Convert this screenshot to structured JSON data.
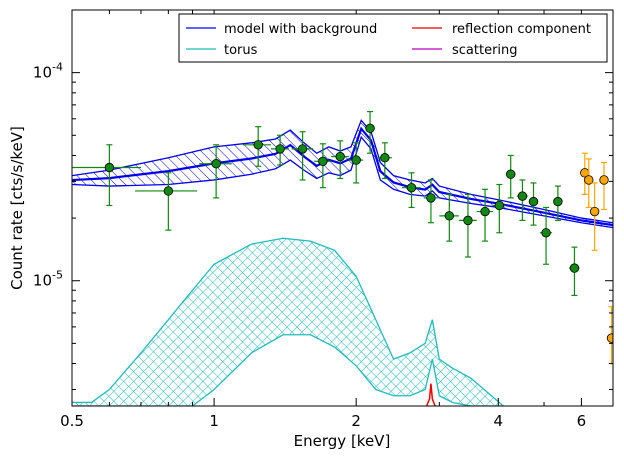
{
  "chart_data": {
    "type": "scatter",
    "xlabel": "Energy [keV]",
    "ylabel": "Count rate [cts/s/keV]",
    "x_scale": "log",
    "y_scale": "log",
    "xlim": [
      0.5,
      7.0
    ],
    "ylim": [
      2.5e-06,
      0.0002
    ],
    "x_tick_labels": [
      {
        "value": 0.5,
        "label": "0.5"
      },
      {
        "value": 1,
        "label": "1"
      },
      {
        "value": 2,
        "label": "2"
      },
      {
        "value": 4,
        "label": "4"
      },
      {
        "value": 6,
        "label": "6"
      }
    ],
    "y_tick_labels": [
      {
        "value": 1e-05,
        "label": "10",
        "exponent": "-5"
      },
      {
        "value": 0.0001,
        "label": "10",
        "exponent": "-4"
      }
    ],
    "legend": {
      "placement": "top-right",
      "columns": 2,
      "entries": [
        {
          "label": "model with background",
          "color": "#0000ee"
        },
        {
          "label": "reflection component",
          "color": "#ee0000"
        },
        {
          "label": "torus",
          "color": "#22bbbb"
        },
        {
          "label": "scattering",
          "color": "#bb00bb"
        }
      ]
    },
    "colors": {
      "model": "#0000ee",
      "torus": "#22bbbb",
      "reflection": "#ee0000",
      "scattering": "#bb00bb",
      "data_green": "#118811",
      "data_orange": "#ffa500"
    },
    "model_band": {
      "x": [
        0.5,
        0.6,
        0.8,
        1.0,
        1.2,
        1.35,
        1.45,
        1.55,
        1.65,
        1.75,
        1.85,
        1.95,
        2.05,
        2.15,
        2.25,
        2.4,
        2.6,
        2.8,
        2.9,
        3.0,
        3.5,
        4.0,
        5.0,
        6.0,
        7.0
      ],
      "upper": [
        3.2e-05,
        3.4e-05,
        3.9e-05,
        4.4e-05,
        4.6e-05,
        4.8e-05,
        5.3e-05,
        4.6e-05,
        4.1e-05,
        4.4e-05,
        4.2e-05,
        4.4e-05,
        5.9e-05,
        5.2e-05,
        3.7e-05,
        3.2e-05,
        3.05e-05,
        2.95e-05,
        3.1e-05,
        2.85e-05,
        2.6e-05,
        2.45e-05,
        2.2e-05,
        2e-05,
        1.9e-05
      ],
      "lower": [
        2.9e-05,
        2.85e-05,
        2.9e-05,
        3.05e-05,
        3.25e-05,
        3.45e-05,
        3.8e-05,
        3.4e-05,
        3.1e-05,
        3.3e-05,
        3.2e-05,
        3.4e-05,
        4.9e-05,
        4.3e-05,
        3.05e-05,
        2.75e-05,
        2.6e-05,
        2.55e-05,
        2.7e-05,
        2.5e-05,
        2.35e-05,
        2.25e-05,
        2.05e-05,
        1.9e-05,
        1.8e-05
      ]
    },
    "torus_band": {
      "x": [
        0.5,
        0.55,
        0.6,
        0.7,
        0.8,
        0.9,
        1.0,
        1.2,
        1.4,
        1.6,
        1.8,
        2.0,
        2.2,
        2.4,
        2.6,
        2.8,
        2.9,
        3.0,
        3.2,
        3.5,
        3.8,
        4.1
      ],
      "upper": [
        2.6e-06,
        2.6e-06,
        3e-06,
        4.5e-06,
        6.5e-06,
        9e-06,
        1.2e-05,
        1.5e-05,
        1.6e-05,
        1.55e-05,
        1.4e-05,
        1.05e-05,
        6.5e-06,
        4.2e-06,
        4.5e-06,
        5e-06,
        6.5e-06,
        4.2e-06,
        3.8e-06,
        3.4e-06,
        2.9e-06,
        2.5e-06
      ],
      "lower": [
        2.5e-06,
        2.5e-06,
        2.5e-06,
        2.5e-06,
        2.5e-06,
        2.5e-06,
        3e-06,
        4.5e-06,
        5.5e-06,
        5.5e-06,
        4.8e-06,
        3.9e-06,
        3e-06,
        2.8e-06,
        2.8e-06,
        3e-06,
        4.2e-06,
        2.8e-06,
        2.6e-06,
        2.5e-06,
        2.5e-06,
        2.5e-06
      ]
    },
    "reflection_line": {
      "x": [
        2.82,
        2.86,
        2.88,
        2.9,
        2.94
      ],
      "y": [
        2.5e-06,
        2.7e-06,
        3.2e-06,
        2.7e-06,
        2.5e-06
      ]
    },
    "data_series": [
      {
        "color": "#118811",
        "points": [
          {
            "x": 0.6,
            "xlo": 0.5,
            "xhi": 0.7,
            "y": 3.5e-05,
            "ylo": 2.3e-05,
            "yhi": 4.5e-05
          },
          {
            "x": 0.8,
            "xlo": 0.68,
            "xhi": 0.92,
            "y": 2.7e-05,
            "ylo": 1.75e-05,
            "yhi": 3.3e-05
          },
          {
            "x": 1.01,
            "xlo": 0.93,
            "xhi": 1.09,
            "y": 3.65e-05,
            "ylo": 2.5e-05,
            "yhi": 4.5e-05
          },
          {
            "x": 1.24,
            "xlo": 1.15,
            "xhi": 1.32,
            "y": 4.5e-05,
            "ylo": 3.55e-05,
            "yhi": 5.5e-05
          },
          {
            "x": 1.38,
            "xlo": 1.32,
            "xhi": 1.44,
            "y": 4.3e-05,
            "ylo": 3.6e-05,
            "yhi": 5e-05
          },
          {
            "x": 1.54,
            "xlo": 1.46,
            "xhi": 1.62,
            "y": 4.3e-05,
            "ylo": 3.05e-05,
            "yhi": 5.2e-05
          },
          {
            "x": 1.7,
            "xlo": 1.63,
            "xhi": 1.77,
            "y": 3.75e-05,
            "ylo": 2.8e-05,
            "yhi": 4.55e-05
          },
          {
            "x": 1.85,
            "xlo": 1.77,
            "xhi": 1.93,
            "y": 3.95e-05,
            "ylo": 3.1e-05,
            "yhi": 4.7e-05
          },
          {
            "x": 2.0,
            "xlo": 1.93,
            "xhi": 2.07,
            "y": 3.8e-05,
            "ylo": 2.95e-05,
            "yhi": 4.6e-05
          },
          {
            "x": 2.14,
            "xlo": 2.09,
            "xhi": 2.19,
            "y": 5.4e-05,
            "ylo": 4.1e-05,
            "yhi": 6.5e-05
          },
          {
            "x": 2.3,
            "xlo": 2.22,
            "xhi": 2.38,
            "y": 3.9e-05,
            "ylo": 3.1e-05,
            "yhi": 4.6e-05
          },
          {
            "x": 2.62,
            "xlo": 2.5,
            "xhi": 2.74,
            "y": 2.8e-05,
            "ylo": 2.25e-05,
            "yhi": 3.3e-05
          },
          {
            "x": 2.88,
            "xlo": 2.78,
            "xhi": 2.98,
            "y": 2.5e-05,
            "ylo": 1.9e-05,
            "yhi": 3.05e-05
          },
          {
            "x": 3.15,
            "xlo": 3.0,
            "xhi": 3.3,
            "y": 2.05e-05,
            "ylo": 1.55e-05,
            "yhi": 2.6e-05
          },
          {
            "x": 3.45,
            "xlo": 3.3,
            "xhi": 3.6,
            "y": 1.95e-05,
            "ylo": 1.3e-05,
            "yhi": 2.6e-05
          },
          {
            "x": 3.75,
            "xlo": 3.6,
            "xhi": 3.9,
            "y": 2.15e-05,
            "ylo": 1.55e-05,
            "yhi": 2.75e-05
          },
          {
            "x": 4.02,
            "xlo": 3.9,
            "xhi": 4.14,
            "y": 2.3e-05,
            "ylo": 1.7e-05,
            "yhi": 2.9e-05
          },
          {
            "x": 4.25,
            "xlo": 4.15,
            "xhi": 4.35,
            "y": 3.25e-05,
            "ylo": 2.5e-05,
            "yhi": 4e-05
          },
          {
            "x": 4.5,
            "xlo": 4.38,
            "xhi": 4.62,
            "y": 2.55e-05,
            "ylo": 1.95e-05,
            "yhi": 3.05e-05
          },
          {
            "x": 4.75,
            "xlo": 4.64,
            "xhi": 4.86,
            "y": 2.4e-05,
            "ylo": 1.85e-05,
            "yhi": 2.95e-05
          },
          {
            "x": 5.05,
            "xlo": 4.9,
            "xhi": 5.2,
            "y": 1.7e-05,
            "ylo": 1.2e-05,
            "yhi": 2.25e-05
          },
          {
            "x": 5.35,
            "xlo": 5.25,
            "xhi": 5.45,
            "y": 2.4e-05,
            "ylo": 1.95e-05,
            "yhi": 2.85e-05
          },
          {
            "x": 5.8,
            "xlo": 5.65,
            "xhi": 5.95,
            "y": 1.15e-05,
            "ylo": 8.5e-06,
            "yhi": 1.45e-05
          }
        ]
      },
      {
        "color": "#ffa500",
        "points": [
          {
            "x": 6.1,
            "xlo": 6.03,
            "xhi": 6.17,
            "y": 3.3e-05,
            "ylo": 2.6e-05,
            "yhi": 4.1e-05
          },
          {
            "x": 6.22,
            "xlo": 6.16,
            "xhi": 6.28,
            "y": 3.05e-05,
            "ylo": 2.25e-05,
            "yhi": 3.85e-05
          },
          {
            "x": 6.4,
            "xlo": 6.32,
            "xhi": 6.48,
            "y": 2.15e-05,
            "ylo": 1.4e-05,
            "yhi": 2.95e-05
          },
          {
            "x": 6.7,
            "xlo": 6.62,
            "xhi": 6.78,
            "y": 3.05e-05,
            "ylo": 2.2e-05,
            "yhi": 3.7e-05
          },
          {
            "x": 6.95,
            "xlo": 6.88,
            "xhi": 7.0,
            "y": 5.3e-06,
            "ylo": 4e-06,
            "yhi": 7.5e-06
          }
        ]
      }
    ]
  }
}
